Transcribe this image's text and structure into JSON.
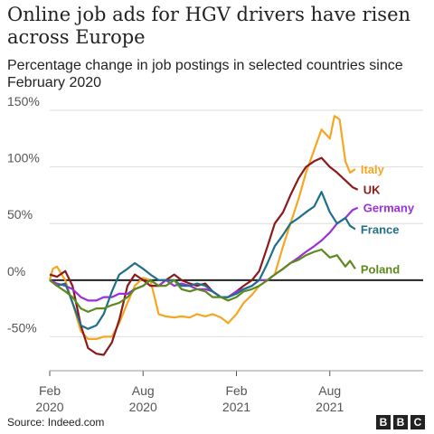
{
  "header": {
    "title": "Online job ads for HGV drivers have risen across Europe",
    "subtitle": "Percentage change in job postings in selected countries since February 2020"
  },
  "footer": {
    "source": "Source: Indeed.com",
    "logo_letters": [
      "B",
      "B",
      "C"
    ]
  },
  "chart_data": {
    "type": "line",
    "title": "Online job ads for HGV drivers have risen across Europe",
    "subtitle": "Percentage change in job postings in selected countries since February 2020",
    "xlabel": "",
    "ylabel": "",
    "x_unit": "months since Feb 2020",
    "xlim": [
      0,
      24
    ],
    "ylim": [
      -80,
      150
    ],
    "y_ticks": [
      150,
      100,
      50,
      0,
      -50
    ],
    "y_tick_labels": [
      "150%",
      "100%",
      "50%",
      "0%",
      "-50%"
    ],
    "x_ticks": [
      {
        "month": "2020-02",
        "line1": "Feb",
        "line2": "2020"
      },
      {
        "month": "2020-08",
        "line1": "Aug",
        "line2": "2020"
      },
      {
        "month": "2021-02",
        "line1": "Feb",
        "line2": "2021"
      },
      {
        "month": "2021-08",
        "line1": "Aug",
        "line2": "2021"
      }
    ],
    "grid": "horizontal",
    "legend": "inline labels at line ends",
    "series": [
      {
        "name": "Italy",
        "color": "#f5a623",
        "points": [
          [
            "2020-02-01",
            0
          ],
          [
            "2020-02-07",
            10
          ],
          [
            "2020-02-15",
            12
          ],
          [
            "2020-03-01",
            0
          ],
          [
            "2020-03-15",
            -20
          ],
          [
            "2020-04-01",
            -45
          ],
          [
            "2020-04-15",
            -52
          ],
          [
            "2020-05-01",
            -52
          ],
          [
            "2020-05-15",
            -50
          ],
          [
            "2020-06-01",
            -50
          ],
          [
            "2020-06-15",
            -38
          ],
          [
            "2020-07-01",
            -20
          ],
          [
            "2020-07-15",
            -5
          ],
          [
            "2020-08-01",
            2
          ],
          [
            "2020-08-15",
            0
          ],
          [
            "2020-09-01",
            -30
          ],
          [
            "2020-09-15",
            -32
          ],
          [
            "2020-10-01",
            -33
          ],
          [
            "2020-10-15",
            -32
          ],
          [
            "2020-11-01",
            -33
          ],
          [
            "2020-11-15",
            -30
          ],
          [
            "2020-12-01",
            -32
          ],
          [
            "2020-12-15",
            -30
          ],
          [
            "2021-01-01",
            -33
          ],
          [
            "2021-01-15",
            -38
          ],
          [
            "2021-02-01",
            -30
          ],
          [
            "2021-02-15",
            -20
          ],
          [
            "2021-03-01",
            -13
          ],
          [
            "2021-03-15",
            -5
          ],
          [
            "2021-04-01",
            0
          ],
          [
            "2021-04-15",
            5
          ],
          [
            "2021-05-01",
            30
          ],
          [
            "2021-05-15",
            50
          ],
          [
            "2021-06-01",
            72
          ],
          [
            "2021-06-15",
            95
          ],
          [
            "2021-07-01",
            115
          ],
          [
            "2021-07-15",
            133
          ],
          [
            "2021-08-01",
            125
          ],
          [
            "2021-08-10",
            145
          ],
          [
            "2021-08-20",
            142
          ],
          [
            "2021-09-01",
            105
          ],
          [
            "2021-09-10",
            95
          ],
          [
            "2021-09-20",
            98
          ]
        ]
      },
      {
        "name": "UK",
        "color": "#8b1a1a",
        "points": [
          [
            "2020-02-01",
            5
          ],
          [
            "2020-02-15",
            3
          ],
          [
            "2020-03-01",
            8
          ],
          [
            "2020-03-15",
            -5
          ],
          [
            "2020-04-01",
            -40
          ],
          [
            "2020-04-15",
            -60
          ],
          [
            "2020-05-01",
            -65
          ],
          [
            "2020-05-15",
            -66
          ],
          [
            "2020-06-01",
            -55
          ],
          [
            "2020-06-15",
            -35
          ],
          [
            "2020-07-01",
            -5
          ],
          [
            "2020-07-15",
            5
          ],
          [
            "2020-08-01",
            0
          ],
          [
            "2020-08-15",
            -5
          ],
          [
            "2020-09-01",
            -5
          ],
          [
            "2020-09-15",
            0
          ],
          [
            "2020-10-01",
            5
          ],
          [
            "2020-10-15",
            0
          ],
          [
            "2020-11-01",
            -3
          ],
          [
            "2020-11-15",
            -5
          ],
          [
            "2020-12-01",
            -3
          ],
          [
            "2020-12-15",
            -10
          ],
          [
            "2021-01-01",
            -15
          ],
          [
            "2021-01-15",
            -15
          ],
          [
            "2021-02-01",
            -10
          ],
          [
            "2021-02-15",
            -5
          ],
          [
            "2021-03-01",
            0
          ],
          [
            "2021-03-15",
            8
          ],
          [
            "2021-04-01",
            30
          ],
          [
            "2021-04-15",
            50
          ],
          [
            "2021-05-01",
            60
          ],
          [
            "2021-05-15",
            75
          ],
          [
            "2021-06-01",
            90
          ],
          [
            "2021-06-15",
            100
          ],
          [
            "2021-07-01",
            105
          ],
          [
            "2021-07-15",
            108
          ],
          [
            "2021-08-01",
            100
          ],
          [
            "2021-08-15",
            95
          ],
          [
            "2021-09-01",
            88
          ],
          [
            "2021-09-15",
            82
          ],
          [
            "2021-09-25",
            80
          ]
        ]
      },
      {
        "name": "Germany",
        "color": "#9b30d9",
        "points": [
          [
            "2020-02-01",
            0
          ],
          [
            "2020-02-15",
            -3
          ],
          [
            "2020-03-01",
            -5
          ],
          [
            "2020-03-15",
            -8
          ],
          [
            "2020-04-01",
            -15
          ],
          [
            "2020-04-15",
            -18
          ],
          [
            "2020-05-01",
            -18
          ],
          [
            "2020-05-15",
            -15
          ],
          [
            "2020-06-01",
            -15
          ],
          [
            "2020-06-15",
            -12
          ],
          [
            "2020-07-01",
            -12
          ],
          [
            "2020-07-15",
            -8
          ],
          [
            "2020-08-01",
            -5
          ],
          [
            "2020-08-15",
            0
          ],
          [
            "2020-09-01",
            -5
          ],
          [
            "2020-09-15",
            0
          ],
          [
            "2020-10-01",
            -5
          ],
          [
            "2020-10-15",
            -3
          ],
          [
            "2020-11-01",
            -5
          ],
          [
            "2020-11-15",
            -8
          ],
          [
            "2020-12-01",
            -8
          ],
          [
            "2020-12-15",
            -10
          ],
          [
            "2021-01-01",
            -15
          ],
          [
            "2021-01-15",
            -15
          ],
          [
            "2021-02-01",
            -10
          ],
          [
            "2021-02-15",
            -8
          ],
          [
            "2021-03-01",
            -5
          ],
          [
            "2021-03-15",
            0
          ],
          [
            "2021-04-01",
            0
          ],
          [
            "2021-04-15",
            5
          ],
          [
            "2021-05-01",
            10
          ],
          [
            "2021-05-15",
            15
          ],
          [
            "2021-06-01",
            20
          ],
          [
            "2021-06-15",
            25
          ],
          [
            "2021-07-01",
            30
          ],
          [
            "2021-07-15",
            35
          ],
          [
            "2021-08-01",
            42
          ],
          [
            "2021-08-15",
            50
          ],
          [
            "2021-09-01",
            55
          ],
          [
            "2021-09-15",
            62
          ],
          [
            "2021-09-25",
            64
          ]
        ]
      },
      {
        "name": "France",
        "color": "#1f6f8b",
        "points": [
          [
            "2020-02-01",
            0
          ],
          [
            "2020-02-15",
            -5
          ],
          [
            "2020-03-01",
            -3
          ],
          [
            "2020-03-15",
            -20
          ],
          [
            "2020-04-01",
            -40
          ],
          [
            "2020-04-15",
            -43
          ],
          [
            "2020-05-01",
            -40
          ],
          [
            "2020-05-15",
            -30
          ],
          [
            "2020-06-01",
            -10
          ],
          [
            "2020-06-15",
            5
          ],
          [
            "2020-07-01",
            10
          ],
          [
            "2020-07-15",
            15
          ],
          [
            "2020-08-01",
            10
          ],
          [
            "2020-08-15",
            5
          ],
          [
            "2020-09-01",
            0
          ],
          [
            "2020-09-15",
            0
          ],
          [
            "2020-10-01",
            0
          ],
          [
            "2020-10-15",
            -5
          ],
          [
            "2020-11-01",
            -5
          ],
          [
            "2020-11-15",
            -3
          ],
          [
            "2020-12-01",
            -5
          ],
          [
            "2020-12-15",
            -10
          ],
          [
            "2021-01-01",
            -15
          ],
          [
            "2021-01-15",
            -15
          ],
          [
            "2021-02-01",
            -12
          ],
          [
            "2021-02-15",
            -8
          ],
          [
            "2021-03-01",
            -5
          ],
          [
            "2021-03-15",
            0
          ],
          [
            "2021-04-01",
            15
          ],
          [
            "2021-04-15",
            30
          ],
          [
            "2021-05-01",
            40
          ],
          [
            "2021-05-15",
            50
          ],
          [
            "2021-06-01",
            55
          ],
          [
            "2021-06-15",
            60
          ],
          [
            "2021-07-01",
            65
          ],
          [
            "2021-07-15",
            78
          ],
          [
            "2021-08-01",
            60
          ],
          [
            "2021-08-15",
            50
          ],
          [
            "2021-09-01",
            55
          ],
          [
            "2021-09-10",
            48
          ],
          [
            "2021-09-20",
            45
          ]
        ]
      },
      {
        "name": "Poland",
        "color": "#5c8a1e",
        "points": [
          [
            "2020-02-01",
            0
          ],
          [
            "2020-02-15",
            -5
          ],
          [
            "2020-03-01",
            -10
          ],
          [
            "2020-03-15",
            -15
          ],
          [
            "2020-04-01",
            -25
          ],
          [
            "2020-04-15",
            -28
          ],
          [
            "2020-05-01",
            -25
          ],
          [
            "2020-05-15",
            -25
          ],
          [
            "2020-06-01",
            -22
          ],
          [
            "2020-06-15",
            -20
          ],
          [
            "2020-07-01",
            -15
          ],
          [
            "2020-07-15",
            -8
          ],
          [
            "2020-08-01",
            -5
          ],
          [
            "2020-08-15",
            0
          ],
          [
            "2020-09-01",
            -5
          ],
          [
            "2020-09-15",
            -5
          ],
          [
            "2020-10-01",
            0
          ],
          [
            "2020-10-15",
            -8
          ],
          [
            "2020-11-01",
            -10
          ],
          [
            "2020-11-15",
            -8
          ],
          [
            "2020-12-01",
            -10
          ],
          [
            "2020-12-15",
            -15
          ],
          [
            "2021-01-01",
            -15
          ],
          [
            "2021-01-15",
            -18
          ],
          [
            "2021-02-01",
            -15
          ],
          [
            "2021-02-15",
            -10
          ],
          [
            "2021-03-01",
            -8
          ],
          [
            "2021-03-15",
            -5
          ],
          [
            "2021-04-01",
            0
          ],
          [
            "2021-04-15",
            5
          ],
          [
            "2021-05-01",
            10
          ],
          [
            "2021-05-15",
            15
          ],
          [
            "2021-06-01",
            18
          ],
          [
            "2021-06-15",
            22
          ],
          [
            "2021-07-01",
            25
          ],
          [
            "2021-07-15",
            27
          ],
          [
            "2021-08-01",
            20
          ],
          [
            "2021-08-15",
            22
          ],
          [
            "2021-09-01",
            12
          ],
          [
            "2021-09-10",
            17
          ],
          [
            "2021-09-20",
            10
          ]
        ]
      }
    ]
  }
}
